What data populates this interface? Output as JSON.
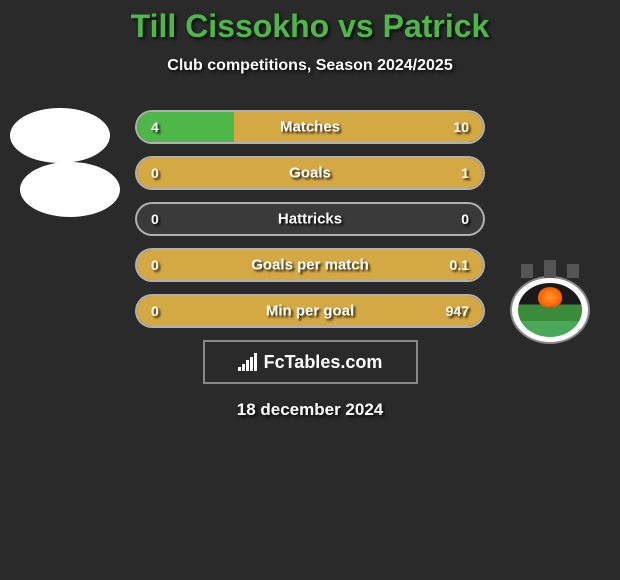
{
  "title": "Till Cissokho vs Patrick",
  "subtitle": "Club competitions, Season 2024/2025",
  "date": "18 december 2024",
  "brand": "FcTables.com",
  "colors": {
    "title": "#4db848",
    "player1_bar": "#4db848",
    "player2_bar": "#d4a843",
    "background": "#2a2a2a",
    "text": "#ffffff"
  },
  "stats": [
    {
      "label": "Matches",
      "v1": "4",
      "v2": "10",
      "pct1": 28,
      "pct2": 72
    },
    {
      "label": "Goals",
      "v1": "0",
      "v2": "1",
      "pct1": 0,
      "pct2": 100
    },
    {
      "label": "Hattricks",
      "v1": "0",
      "v2": "0",
      "pct1": 0,
      "pct2": 0
    },
    {
      "label": "Goals per match",
      "v1": "0",
      "v2": "0.1",
      "pct1": 0,
      "pct2": 100
    },
    {
      "label": "Min per goal",
      "v1": "0",
      "v2": "947",
      "pct1": 0,
      "pct2": 100
    }
  ]
}
